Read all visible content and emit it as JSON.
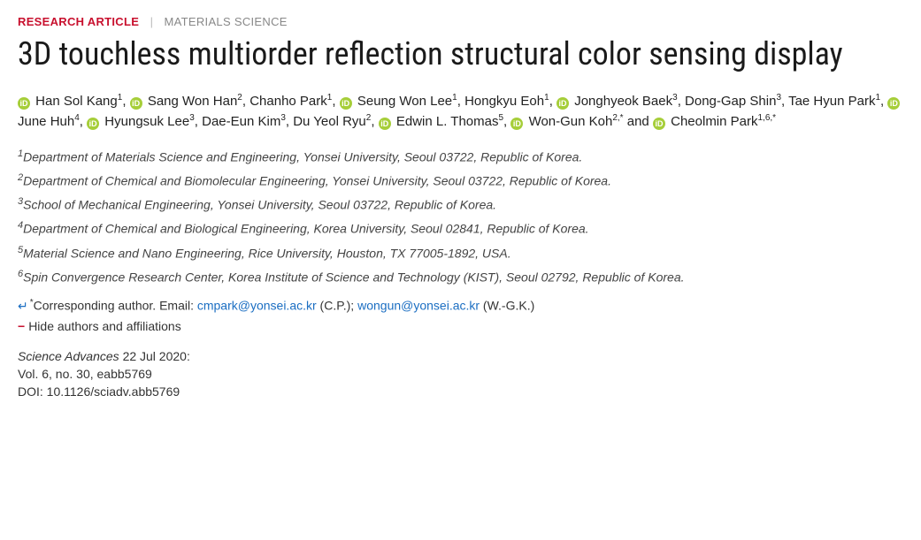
{
  "header": {
    "type_label": "RESEARCH ARTICLE",
    "category_label": "MATERIALS SCIENCE"
  },
  "title": "3D touchless multiorder reflection structural color sensing display",
  "authors": [
    {
      "name": "Han Sol Kang",
      "aff": "1",
      "orcid": true
    },
    {
      "name": "Sang Won Han",
      "aff": "2",
      "orcid": true
    },
    {
      "name": "Chanho Park",
      "aff": "1",
      "orcid": false
    },
    {
      "name": "Seung Won Lee",
      "aff": "1",
      "orcid": true
    },
    {
      "name": "Hongkyu Eoh",
      "aff": "1",
      "orcid": false
    },
    {
      "name": "Jonghyeok Baek",
      "aff": "3",
      "orcid": true
    },
    {
      "name": "Dong-Gap Shin",
      "aff": "3",
      "orcid": false
    },
    {
      "name": "Tae Hyun Park",
      "aff": "1",
      "orcid": false
    },
    {
      "name": "June Huh",
      "aff": "4",
      "orcid": true
    },
    {
      "name": "Hyungsuk Lee",
      "aff": "3",
      "orcid": true
    },
    {
      "name": "Dae-Eun Kim",
      "aff": "3",
      "orcid": false
    },
    {
      "name": "Du Yeol Ryu",
      "aff": "2",
      "orcid": false
    },
    {
      "name": "Edwin L. Thomas",
      "aff": "5",
      "orcid": true
    },
    {
      "name": "Won-Gun Koh",
      "aff": "2,*",
      "orcid": true
    },
    {
      "name": "Cheolmin Park",
      "aff": "1,6,*",
      "orcid": true
    }
  ],
  "connector_and": " and ",
  "affiliations": [
    {
      "num": "1",
      "text": "Department of Materials Science and Engineering, Yonsei University, Seoul 03722, Republic of Korea."
    },
    {
      "num": "2",
      "text": "Department of Chemical and Biomolecular Engineering, Yonsei University, Seoul 03722, Republic of Korea."
    },
    {
      "num": "3",
      "text": "School of Mechanical Engineering, Yonsei University, Seoul 03722, Republic of Korea."
    },
    {
      "num": "4",
      "text": "Department of Chemical and Biological Engineering, Korea University, Seoul 02841, Republic of Korea."
    },
    {
      "num": "5",
      "text": "Material Science and Nano Engineering, Rice University, Houston, TX 77005-1892, USA."
    },
    {
      "num": "6",
      "text": "Spin Convergence Research Center, Korea Institute of Science and Technology (KIST), Seoul 02792, Republic of Korea."
    }
  ],
  "corresponding": {
    "symbol": "↵",
    "star": "*",
    "lead_text": "Corresponding author. Email: ",
    "email1": "cmpark@yonsei.ac.kr",
    "suffix1": " (C.P.); ",
    "email2": "wongun@yonsei.ac.kr",
    "suffix2": " (W.-G.K.)"
  },
  "toggle": {
    "minus": "−",
    "text": "Hide authors and affiliations"
  },
  "pub": {
    "journal": "Science Advances ",
    "date": " 22 Jul 2020:",
    "vol": "Vol. 6, no. 30, eabb5769",
    "doi": "DOI: 10.1126/sciadv.abb5769"
  },
  "colors": {
    "brand_red": "#c8102e",
    "orcid_green": "#a6ce39",
    "link_blue": "#1b6ec2"
  }
}
